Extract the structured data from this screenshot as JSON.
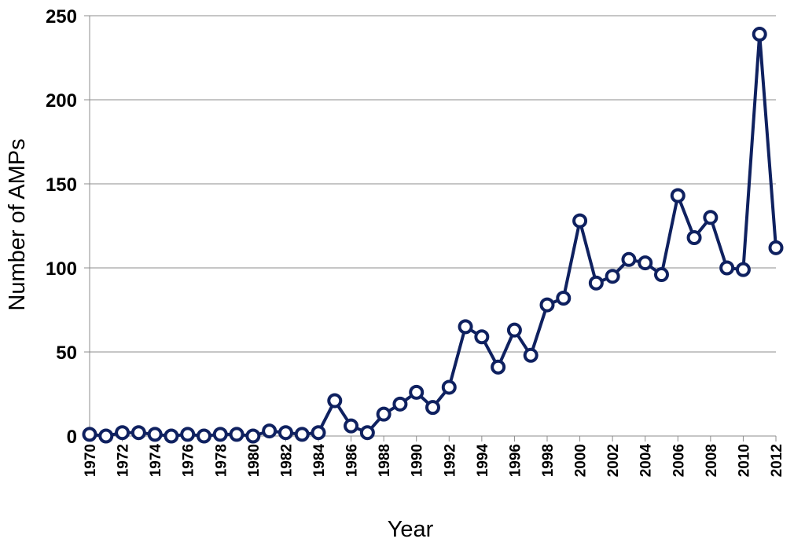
{
  "chart_data": {
    "type": "line",
    "xlabel": "Year",
    "ylabel": "Number of AMPs",
    "ylim": [
      0,
      250
    ],
    "yticks": [
      0,
      50,
      100,
      150,
      200,
      250
    ],
    "xlim": [
      1970,
      2012
    ],
    "xticks": [
      1970,
      1972,
      1974,
      1976,
      1978,
      1980,
      1982,
      1984,
      1986,
      1988,
      1990,
      1992,
      1994,
      1996,
      1998,
      2000,
      2002,
      2004,
      2006,
      2008,
      2010,
      2012
    ],
    "grid": "horizontal",
    "legend": "none",
    "series": [
      {
        "color": "#0f2160",
        "marker": "open-circle",
        "x": [
          1970,
          1971,
          1972,
          1973,
          1974,
          1975,
          1976,
          1977,
          1978,
          1979,
          1980,
          1981,
          1982,
          1983,
          1984,
          1985,
          1986,
          1987,
          1988,
          1989,
          1990,
          1991,
          1992,
          1993,
          1994,
          1995,
          1996,
          1997,
          1998,
          1999,
          2000,
          2001,
          2002,
          2003,
          2004,
          2005,
          2006,
          2007,
          2008,
          2009,
          2010,
          2011,
          2012
        ],
        "y": [
          1,
          0,
          2,
          2,
          1,
          0,
          1,
          0,
          1,
          1,
          0,
          3,
          2,
          1,
          2,
          21,
          6,
          2,
          13,
          19,
          26,
          17,
          29,
          65,
          59,
          41,
          63,
          48,
          78,
          82,
          128,
          91,
          95,
          105,
          103,
          96,
          143,
          118,
          130,
          100,
          99,
          239,
          112
        ]
      }
    ]
  }
}
